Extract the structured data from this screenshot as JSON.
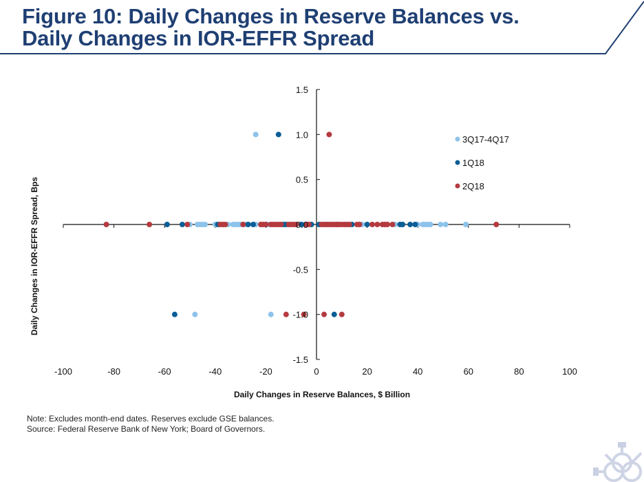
{
  "header": {
    "title_line1": "Figure 10: Daily Changes in Reserve Balances vs.",
    "title_line2": "Daily Changes in IOR-EFFR Spread"
  },
  "footer": {
    "note": "Note: Excludes month-end dates. Reserves exclude GSE balances.",
    "source": "Source: Federal Reserve Bank of New York; Board of Governors."
  },
  "logo": {
    "icon": "fed-ny-seal-icon"
  },
  "chart_data": {
    "type": "scatter",
    "title": "Figure 10: Daily Changes in Reserve Balances vs. Daily Changes in IOR-EFFR Spread",
    "xlabel": "Daily Changes in Reserve Balances, $ Billion",
    "ylabel": "Daily Changes in IOR-EFFR Spread, Bps",
    "xlim": [
      -100,
      100
    ],
    "ylim": [
      -1.5,
      1.5
    ],
    "x_ticks": [
      "-100",
      "-80",
      "-60",
      "-40",
      "-20",
      "0",
      "20",
      "40",
      "60",
      "80",
      "100"
    ],
    "y_ticks": [
      "-1.5",
      "-1.0",
      "-0.5",
      "0.0",
      "0.5",
      "1.0",
      "1.5"
    ],
    "x_tick_values": [
      -100,
      -80,
      -60,
      -40,
      -20,
      0,
      20,
      40,
      60,
      80,
      100
    ],
    "y_tick_values": [
      -1.5,
      -1.0,
      -0.5,
      0.0,
      0.5,
      1.0,
      1.5
    ],
    "grid": false,
    "legend_position": "top-right",
    "series": [
      {
        "name": "3Q17-4Q17",
        "color": "#8dc3ea",
        "points": [
          [
            -24,
            1.0
          ],
          [
            -48,
            -1.0
          ],
          [
            -18,
            -1.0
          ],
          [
            -50,
            0
          ],
          [
            -47,
            0
          ],
          [
            -46,
            0
          ],
          [
            -45,
            0
          ],
          [
            -44,
            0
          ],
          [
            -40,
            0
          ],
          [
            -37,
            0
          ],
          [
            -35,
            0
          ],
          [
            -33,
            0
          ],
          [
            -32,
            0
          ],
          [
            -31,
            0
          ],
          [
            -30,
            0
          ],
          [
            -28,
            0
          ],
          [
            -24,
            0
          ],
          [
            -22,
            0
          ],
          [
            -19,
            0
          ],
          [
            -8,
            0
          ],
          [
            -5,
            0
          ],
          [
            2,
            0
          ],
          [
            6,
            0
          ],
          [
            12,
            0
          ],
          [
            18,
            0
          ],
          [
            22,
            0
          ],
          [
            27,
            0
          ],
          [
            31,
            0
          ],
          [
            39,
            0
          ],
          [
            40,
            0
          ],
          [
            42,
            0
          ],
          [
            43,
            0
          ],
          [
            44,
            0
          ],
          [
            45,
            0
          ],
          [
            49,
            0
          ],
          [
            51,
            0
          ],
          [
            59,
            0
          ]
        ]
      },
      {
        "name": "1Q18",
        "color": "#0b5e96",
        "points": [
          [
            -15,
            1.0
          ],
          [
            -56,
            -1.0
          ],
          [
            7,
            -1.0
          ],
          [
            -59,
            0
          ],
          [
            -53,
            0
          ],
          [
            -39,
            0
          ],
          [
            -27,
            0
          ],
          [
            -25,
            0
          ],
          [
            -20,
            0
          ],
          [
            -13,
            0
          ],
          [
            -12,
            0
          ],
          [
            -6,
            0
          ],
          [
            -2,
            0
          ],
          [
            1,
            0
          ],
          [
            4,
            0
          ],
          [
            8,
            0
          ],
          [
            14,
            0
          ],
          [
            20,
            0
          ],
          [
            33,
            0
          ],
          [
            34,
            0
          ],
          [
            37,
            0
          ],
          [
            39,
            0
          ]
        ]
      },
      {
        "name": "2Q18",
        "color": "#b43a3f",
        "points": [
          [
            5,
            1.0
          ],
          [
            -12,
            -1.0
          ],
          [
            -5,
            -1.0
          ],
          [
            3,
            -1.0
          ],
          [
            10,
            -1.0
          ],
          [
            -83,
            0
          ],
          [
            -66,
            0
          ],
          [
            -51,
            0
          ],
          [
            -38,
            0
          ],
          [
            -37,
            0
          ],
          [
            -36,
            0
          ],
          [
            -29,
            0
          ],
          [
            -22,
            0
          ],
          [
            -21,
            0
          ],
          [
            -20,
            0
          ],
          [
            -18,
            0
          ],
          [
            -17,
            0
          ],
          [
            -16,
            0
          ],
          [
            -15,
            0
          ],
          [
            -14,
            0
          ],
          [
            -11,
            0
          ],
          [
            -10,
            0
          ],
          [
            -9,
            0
          ],
          [
            -8,
            0
          ],
          [
            -4,
            0
          ],
          [
            -3,
            0
          ],
          [
            2,
            0
          ],
          [
            3,
            0
          ],
          [
            4,
            0
          ],
          [
            5,
            0
          ],
          [
            6,
            0
          ],
          [
            7,
            0
          ],
          [
            8,
            0
          ],
          [
            9,
            0
          ],
          [
            10,
            0
          ],
          [
            11,
            0
          ],
          [
            12,
            0
          ],
          [
            13,
            0
          ],
          [
            16,
            0
          ],
          [
            17,
            0
          ],
          [
            22,
            0
          ],
          [
            24,
            0
          ],
          [
            26,
            0
          ],
          [
            27,
            0
          ],
          [
            28,
            0
          ],
          [
            30,
            0
          ],
          [
            71,
            0
          ]
        ]
      }
    ]
  }
}
